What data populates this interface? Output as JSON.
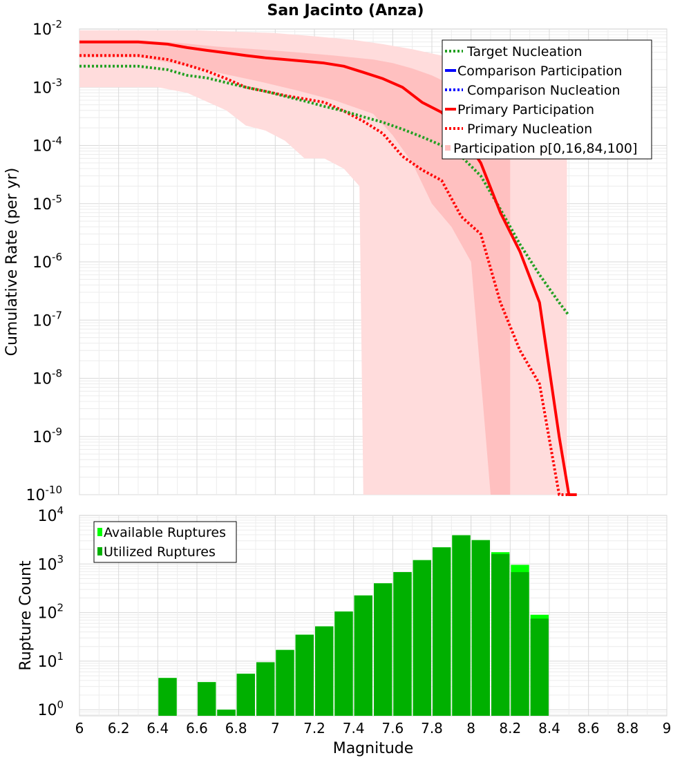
{
  "chart_data": [
    {
      "type": "line",
      "title": "San Jacinto (Anza)",
      "xlabel": "Magnitude",
      "ylabel": "Cumulative Rate (per yr)",
      "xscale": "linear",
      "yscale": "log",
      "xlim": [
        6,
        9
      ],
      "ylim": [
        1e-10,
        0.01
      ],
      "x_ticks": [
        "6",
        "6.2",
        "6.4",
        "6.6",
        "6.8",
        "7",
        "7.2",
        "7.4",
        "7.6",
        "7.8",
        "8",
        "8.2",
        "8.4",
        "8.6",
        "8.8",
        "9"
      ],
      "y_ticks": [
        {
          "base": "10",
          "exp": "-2"
        },
        {
          "base": "10",
          "exp": "-3"
        },
        {
          "base": "10",
          "exp": "-4"
        },
        {
          "base": "10",
          "exp": "-5"
        },
        {
          "base": "10",
          "exp": "-6"
        },
        {
          "base": "10",
          "exp": "-7"
        },
        {
          "base": "10",
          "exp": "-8"
        },
        {
          "base": "10",
          "exp": "-9"
        },
        {
          "base": "10",
          "exp": "-10"
        }
      ],
      "legend_position": "top-right",
      "grid": true,
      "series": [
        {
          "name": "Target Nucleation",
          "style": "dotted",
          "color": "#22a022",
          "x": [
            6.0,
            6.3,
            6.45,
            6.55,
            6.65,
            6.75,
            6.85,
            6.95,
            7.05,
            7.15,
            7.25,
            7.35,
            7.45,
            7.55,
            7.65,
            7.75,
            7.85,
            7.95,
            8.05,
            8.15,
            8.25,
            8.35,
            8.45,
            8.5
          ],
          "y": [
            0.0023,
            0.0023,
            0.002,
            0.0016,
            0.00145,
            0.0012,
            0.001,
            0.00085,
            0.0007,
            0.00058,
            0.00047,
            0.00039,
            0.00031,
            0.00025,
            0.00019,
            0.00014,
            0.0001,
            6.5e-05,
            3e-05,
            8e-06,
            2e-06,
            6e-07,
            2e-07,
            1.2e-07
          ]
        },
        {
          "name": "Comparison Participation",
          "style": "solid",
          "color": "#0000ff",
          "x": [],
          "y": []
        },
        {
          "name": "Comparison Nucleation",
          "style": "dotted",
          "color": "#0000ff",
          "x": [],
          "y": []
        },
        {
          "name": "Primary Participation",
          "style": "solid",
          "color": "#ff0000",
          "x": [
            6.0,
            6.3,
            6.45,
            6.55,
            6.65,
            6.75,
            6.85,
            6.95,
            7.05,
            7.15,
            7.25,
            7.35,
            7.45,
            7.55,
            7.65,
            7.75,
            7.85,
            7.95,
            8.05,
            8.15,
            8.25,
            8.35,
            8.45,
            8.5,
            8.52,
            8.54
          ],
          "y": [
            0.006,
            0.006,
            0.0055,
            0.0048,
            0.0043,
            0.0039,
            0.0035,
            0.0032,
            0.003,
            0.0028,
            0.0026,
            0.0023,
            0.0018,
            0.0014,
            0.001,
            0.00055,
            0.00037,
            0.00016,
            5e-05,
            7e-06,
            1.5e-06,
            2e-07,
            1e-09,
            1e-10,
            1e-10,
            1e-10
          ]
        },
        {
          "name": "Primary Nucleation",
          "style": "dotted",
          "color": "#ff0000",
          "x": [
            6.0,
            6.3,
            6.45,
            6.55,
            6.65,
            6.75,
            6.85,
            6.95,
            7.05,
            7.15,
            7.25,
            7.35,
            7.45,
            7.55,
            7.65,
            7.75,
            7.85,
            7.95,
            8.05,
            8.15,
            8.25,
            8.35,
            8.45,
            8.5,
            8.52
          ],
          "y": [
            0.0035,
            0.0035,
            0.003,
            0.0024,
            0.0019,
            0.0014,
            0.001,
            0.00085,
            0.00072,
            0.00063,
            0.00055,
            0.00039,
            0.00026,
            0.00016,
            6.5e-05,
            3.8e-05,
            2.5e-05,
            6e-06,
            3e-06,
            2e-07,
            3e-08,
            8e-09,
            1e-10,
            1e-10,
            1e-10
          ]
        }
      ],
      "band": {
        "name": "Participation p[0,16,84,100]",
        "color": "#ff0000",
        "outer_x": [
          6.0,
          6.2,
          6.4,
          6.6,
          6.8,
          7.0,
          7.2,
          7.4,
          7.55,
          7.7,
          7.85,
          8.0,
          8.15,
          8.35,
          8.49
        ],
        "outer_upper": [
          0.0095,
          0.0095,
          0.0095,
          0.0095,
          0.009,
          0.0085,
          0.0075,
          0.0065,
          0.0055,
          0.0045,
          0.0035,
          0.0025,
          0.0015,
          0.0007,
          0.0002
        ],
        "outer_lower_x": [
          6.0,
          6.2,
          6.4,
          6.55,
          6.75,
          6.85,
          6.95,
          7.05,
          7.15,
          7.25,
          7.35,
          7.43,
          7.45,
          7.6,
          7.7,
          7.8,
          7.88,
          7.9,
          8.05,
          8.15,
          8.2,
          8.49
        ],
        "outer_lower": [
          0.001,
          0.001,
          0.001,
          0.0008,
          0.0004,
          0.00022,
          0.00018,
          0.00012,
          6e-05,
          6e-05,
          4e-05,
          2e-05,
          1e-10,
          1e-10,
          1e-10,
          1e-10,
          1e-10,
          1e-10,
          1e-10,
          1e-10,
          1e-10,
          1e-10
        ],
        "inner_x": [
          6.0,
          6.3,
          6.5,
          6.7,
          6.9,
          7.1,
          7.3,
          7.5,
          7.6,
          7.7,
          7.8,
          7.9,
          8.0,
          8.1,
          8.2
        ],
        "inner_upper": [
          0.0065,
          0.0065,
          0.0058,
          0.005,
          0.0045,
          0.004,
          0.0035,
          0.003,
          0.0026,
          0.0021,
          0.0016,
          0.0011,
          0.0007,
          0.0004,
          0.0002
        ],
        "inner_lower": [
          0.0033,
          0.0033,
          0.0025,
          0.0018,
          0.0013,
          0.0009,
          0.0006,
          0.00035,
          0.00015,
          5e-05,
          1e-05,
          4e-06,
          1e-06,
          1e-10,
          1e-10
        ]
      }
    },
    {
      "type": "bar",
      "xlabel": "Magnitude",
      "ylabel": "Rupture Count",
      "xscale": "linear",
      "yscale": "log",
      "xlim": [
        6,
        9
      ],
      "ylim": [
        0.75,
        10000
      ],
      "x_ticks": [
        "6",
        "6.2",
        "6.4",
        "6.6",
        "6.8",
        "7",
        "7.2",
        "7.4",
        "7.6",
        "7.8",
        "8",
        "8.2",
        "8.4",
        "8.6",
        "8.8",
        "9"
      ],
      "y_ticks": [
        {
          "base": "10",
          "exp": "4"
        },
        {
          "base": "10",
          "exp": "3"
        },
        {
          "base": "10",
          "exp": "2"
        },
        {
          "base": "10",
          "exp": "1"
        },
        {
          "base": "10",
          "exp": "0"
        }
      ],
      "legend_position": "top-left",
      "grid": true,
      "bin_width": 0.1,
      "categories": [
        6.45,
        6.55,
        6.65,
        6.75,
        6.85,
        6.95,
        7.05,
        7.15,
        7.25,
        7.35,
        7.45,
        7.55,
        7.65,
        7.75,
        7.85,
        7.95,
        8.05,
        8.15,
        8.25,
        8.35
      ],
      "series": [
        {
          "name": "Available Ruptures",
          "color": "#00ff00",
          "values": [
            4.5,
            0,
            3.7,
            1.0,
            5.5,
            9.5,
            17,
            35,
            52,
            105,
            225,
            400,
            680,
            1200,
            2200,
            3900,
            3100,
            1750,
            960,
            90
          ]
        },
        {
          "name": "Utilized Ruptures",
          "color": "#00b000",
          "values": [
            4.5,
            0,
            3.7,
            1.0,
            5.5,
            9.5,
            17,
            35,
            52,
            105,
            225,
            400,
            680,
            1200,
            2200,
            3900,
            3100,
            1600,
            680,
            75
          ]
        }
      ]
    }
  ]
}
